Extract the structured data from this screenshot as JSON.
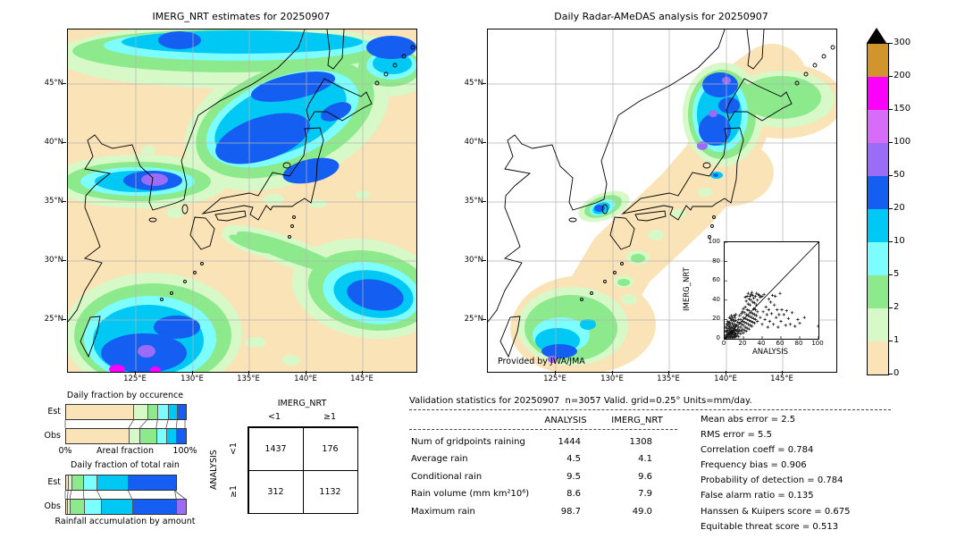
{
  "palette": {
    "levels": [
      "#fae3b7",
      "#d7f9c7",
      "#8cea8c",
      "#7dfdfd",
      "#00c8f5",
      "#155ef2",
      "#9b6cf8",
      "#d76cf8",
      "#fb00fb",
      "#d2952e"
    ],
    "overflow": "#000000",
    "grid": "#b3b3b3",
    "coast": "#000000",
    "right_map_background": "#ffffff"
  },
  "colorbar": {
    "tick_labels": [
      "0",
      "1",
      "2",
      "5",
      "10",
      "20",
      "50",
      "100",
      "150",
      "200",
      "300"
    ],
    "units": "mm/day"
  },
  "chart_data": [
    {
      "type": "heatmap",
      "subtype": "filled-contour-precipitation-map",
      "title": "IMERG_NRT estimates for 20250907",
      "x_ticks": [
        "125°E",
        "130°E",
        "135°E",
        "140°E",
        "145°E"
      ],
      "y_ticks": [
        "45°N",
        "40°N",
        "35°N",
        "30°N",
        "25°N"
      ],
      "legend_levels_mm_day": [
        0,
        1,
        2,
        5,
        10,
        20,
        50,
        100,
        150,
        200,
        300
      ],
      "notes": "Daily precipitation over Japan region; heavy rain band (20-50+) over Sea of Japan, northern Honshu and Hokkaido, cell with 50-100 core south of Korea, large 20-50 areas southwest of Okinawa with 150-200 spots, band near 27N east of 140E, cyan band along northern edge"
    },
    {
      "type": "heatmap",
      "subtype": "filled-contour-precipitation-map",
      "title": "Daily Radar-AMeDAS analysis for 20250907",
      "x_ticks": [
        "125°E",
        "130°E",
        "135°E",
        "140°E",
        "145°E"
      ],
      "y_ticks": [
        "45°N",
        "40°N",
        "35°N",
        "30°N",
        "25°N"
      ],
      "legend_levels_mm_day": [
        0,
        1,
        2,
        5,
        10,
        20,
        50,
        100,
        150,
        200,
        300
      ],
      "annotation": "Provided by JWA/JMA",
      "notes": "Radar coverage band along Japanese archipelago on white background; heavy rain (20-50 with 50-100 spots) along Sea-of-Japan side of Tohoku and western Hokkaido, cells near Korea Strait, circular radar areas around Okinawa with rain, green over eastern Hokkaido"
    },
    {
      "type": "bar",
      "subtype": "stacked-horizontal-fraction",
      "title": "Daily fraction by occurence",
      "xlabel": "Areal fraction",
      "x_start_label": "0%",
      "x_end_label": "100%",
      "categories": [
        "Est",
        "Obs"
      ],
      "levels": [
        0,
        1,
        2,
        3,
        4,
        5
      ],
      "series": [
        {
          "name": "0-1 mm/day",
          "values": [
            57.0,
            52.8
          ]
        },
        {
          "name": "1-2 mm/day",
          "values": [
            11.3,
            9.3
          ]
        },
        {
          "name": "2-5 mm/day",
          "values": [
            8.8,
            13.8
          ]
        },
        {
          "name": "5-10 mm/day",
          "values": [
            8.8,
            8.3
          ]
        },
        {
          "name": "10-20 mm/day",
          "values": [
            7.5,
            8.5
          ]
        },
        {
          "name": "20-50 mm/day",
          "values": [
            6.6,
            7.3
          ]
        }
      ]
    },
    {
      "type": "bar",
      "subtype": "stacked-horizontal-fraction",
      "title": "Daily fraction of total rain",
      "caption": "Rainfall accumulation by amount",
      "categories": [
        "Est",
        "Obs"
      ],
      "levels": [
        0,
        1,
        2,
        3,
        4,
        5,
        6
      ],
      "series": [
        {
          "name": "0-1 mm/day",
          "values": [
            2.3,
            1.8
          ]
        },
        {
          "name": "1-2 mm/day",
          "values": [
            2.7,
            2.0
          ]
        },
        {
          "name": "2-5 mm/day",
          "values": [
            10.3,
            11.7
          ]
        },
        {
          "name": "5-10 mm/day",
          "values": [
            11.2,
            14.5
          ]
        },
        {
          "name": "10-20 mm/day",
          "values": [
            26.0,
            25.7
          ]
        },
        {
          "name": "20-50 mm/day",
          "values": [
            39.0,
            37.0
          ]
        },
        {
          "name": "50-100 mm/day",
          "values": [
            0,
            7.3
          ]
        }
      ]
    },
    {
      "type": "table",
      "subtype": "contingency",
      "col_title": "IMERG_NRT",
      "row_title": "ANALYSIS",
      "col_labels": [
        "<1",
        "≥1"
      ],
      "row_labels": [
        "<1",
        "≥1"
      ],
      "values": [
        [
          "1437",
          "176"
        ],
        [
          "312",
          "1132"
        ]
      ]
    },
    {
      "type": "table",
      "subtype": "validation-statistics",
      "title": "Validation statistics for 20250907  n=3057 Valid. grid=0.25° Units=mm/day.",
      "col_headers": [
        "ANALYSIS",
        "IMERG_NRT"
      ],
      "rows": [
        {
          "label": "Num of gridpoints raining",
          "analysis": "1444",
          "imerg": "1308"
        },
        {
          "label": "Average rain",
          "analysis": "4.5",
          "imerg": "4.1"
        },
        {
          "label": "Conditional rain",
          "analysis": "9.5",
          "imerg": "9.6"
        },
        {
          "label": "Rain volume (mm km²10⁶)",
          "analysis": "8.6",
          "imerg": "7.9"
        },
        {
          "label": "Maximum rain",
          "analysis": "98.7",
          "imerg": "49.0"
        }
      ],
      "metrics": [
        {
          "label": "Mean abs error",
          "value": "2.5"
        },
        {
          "label": "RMS error",
          "value": "5.5"
        },
        {
          "label": "Correlation coeff",
          "value": "0.784"
        },
        {
          "label": "Frequency bias",
          "value": "0.906"
        },
        {
          "label": "Probability of detection",
          "value": "0.784"
        },
        {
          "label": "False alarm ratio",
          "value": "0.135"
        },
        {
          "label": "Hanssen & Kuipers score",
          "value": "0.675"
        },
        {
          "label": "Equitable threat score",
          "value": "0.513"
        }
      ]
    },
    {
      "type": "scatter",
      "subtype": "inset-validation-scatter",
      "xlabel": "ANALYSIS",
      "ylabel": "IMERG_NRT",
      "xlim": [
        0,
        100
      ],
      "ylim": [
        0,
        100
      ],
      "ticks": [
        "0",
        "20",
        "40",
        "60",
        "80",
        "100"
      ],
      "marker": "+",
      "one_to_one_line": true,
      "points": [
        [
          1,
          1
        ],
        [
          1,
          3
        ],
        [
          2,
          1
        ],
        [
          2,
          4
        ],
        [
          2,
          7
        ],
        [
          3,
          2
        ],
        [
          3,
          5
        ],
        [
          3,
          9
        ],
        [
          4,
          1
        ],
        [
          4,
          4
        ],
        [
          4,
          7
        ],
        [
          4,
          11
        ],
        [
          5,
          2
        ],
        [
          5,
          5
        ],
        [
          5,
          9
        ],
        [
          5,
          13
        ],
        [
          6,
          1
        ],
        [
          6,
          3
        ],
        [
          6,
          6
        ],
        [
          6,
          10
        ],
        [
          6,
          15
        ],
        [
          7,
          2
        ],
        [
          7,
          5
        ],
        [
          7,
          8
        ],
        [
          7,
          12
        ],
        [
          8,
          1
        ],
        [
          8,
          4
        ],
        [
          8,
          7
        ],
        [
          8,
          11
        ],
        [
          8,
          16
        ],
        [
          9,
          2
        ],
        [
          9,
          6
        ],
        [
          9,
          9
        ],
        [
          9,
          14
        ],
        [
          10,
          1
        ],
        [
          10,
          4
        ],
        [
          10,
          8
        ],
        [
          10,
          12
        ],
        [
          10,
          18
        ],
        [
          11,
          3
        ],
        [
          11,
          6
        ],
        [
          11,
          10
        ],
        [
          11,
          15
        ],
        [
          12,
          2
        ],
        [
          12,
          5
        ],
        [
          12,
          9
        ],
        [
          12,
          13
        ],
        [
          12,
          19
        ],
        [
          3,
          14
        ],
        [
          2,
          11
        ],
        [
          1,
          8
        ],
        [
          5,
          17
        ],
        [
          7,
          19
        ],
        [
          4,
          16
        ],
        [
          6,
          21
        ],
        [
          9,
          20
        ],
        [
          11,
          22
        ],
        [
          2,
          15
        ],
        [
          8,
          22
        ],
        [
          10,
          24
        ],
        [
          12,
          25
        ],
        [
          1,
          12
        ],
        [
          3,
          18
        ],
        [
          5,
          22
        ],
        [
          7,
          24
        ],
        [
          13,
          3
        ],
        [
          13,
          8
        ],
        [
          13,
          14
        ],
        [
          14,
          5
        ],
        [
          14,
          10
        ],
        [
          14,
          17
        ],
        [
          15,
          2
        ],
        [
          15,
          7
        ],
        [
          15,
          12
        ],
        [
          15,
          20
        ],
        [
          16,
          9
        ],
        [
          16,
          16
        ],
        [
          16,
          24
        ],
        [
          17,
          5
        ],
        [
          17,
          12
        ],
        [
          17,
          20
        ],
        [
          18,
          8
        ],
        [
          18,
          15
        ],
        [
          18,
          26
        ],
        [
          19,
          10
        ],
        [
          19,
          18
        ],
        [
          19,
          28
        ],
        [
          20,
          6
        ],
        [
          20,
          14
        ],
        [
          20,
          22
        ],
        [
          20,
          31
        ],
        [
          21,
          9
        ],
        [
          21,
          17
        ],
        [
          21,
          27
        ],
        [
          22,
          12
        ],
        [
          22,
          21
        ],
        [
          22,
          33
        ],
        [
          23,
          8
        ],
        [
          23,
          16
        ],
        [
          23,
          25
        ],
        [
          24,
          11
        ],
        [
          24,
          20
        ],
        [
          24,
          30
        ],
        [
          25,
          15
        ],
        [
          25,
          24
        ],
        [
          25,
          36
        ],
        [
          26,
          10
        ],
        [
          26,
          19
        ],
        [
          26,
          29
        ],
        [
          27,
          14
        ],
        [
          27,
          23
        ],
        [
          27,
          35
        ],
        [
          28,
          18
        ],
        [
          28,
          27
        ],
        [
          28,
          40
        ],
        [
          29,
          13
        ],
        [
          29,
          22
        ],
        [
          30,
          17
        ],
        [
          30,
          26
        ],
        [
          30,
          38
        ],
        [
          31,
          21
        ],
        [
          31,
          31
        ],
        [
          32,
          16
        ],
        [
          32,
          25
        ],
        [
          32,
          37
        ],
        [
          33,
          20
        ],
        [
          33,
          30
        ],
        [
          34,
          24
        ],
        [
          34,
          35
        ],
        [
          35,
          18
        ],
        [
          35,
          28
        ],
        [
          22,
          43
        ],
        [
          24,
          44
        ],
        [
          25,
          47
        ],
        [
          27,
          44
        ],
        [
          28,
          46
        ],
        [
          30,
          45
        ],
        [
          31,
          42
        ],
        [
          33,
          44
        ],
        [
          35,
          40
        ],
        [
          36,
          46
        ],
        [
          38,
          43
        ],
        [
          26,
          41
        ],
        [
          29,
          48
        ],
        [
          23,
          39
        ],
        [
          34,
          47
        ],
        [
          37,
          45
        ],
        [
          40,
          44
        ],
        [
          42,
          46
        ],
        [
          38,
          22
        ],
        [
          40,
          15
        ],
        [
          41,
          28
        ],
        [
          43,
          20
        ],
        [
          44,
          33
        ],
        [
          45,
          25
        ],
        [
          46,
          12
        ],
        [
          47,
          30
        ],
        [
          48,
          18
        ],
        [
          50,
          26
        ],
        [
          51,
          45
        ],
        [
          52,
          15
        ],
        [
          53,
          35
        ],
        [
          55,
          22
        ],
        [
          56,
          30
        ],
        [
          57,
          12
        ],
        [
          58,
          25
        ],
        [
          60,
          18
        ],
        [
          61,
          30
        ],
        [
          63,
          25
        ],
        [
          65,
          14
        ],
        [
          66,
          29
        ],
        [
          68,
          21
        ],
        [
          70,
          15
        ],
        [
          72,
          27
        ],
        [
          75,
          13
        ],
        [
          78,
          20
        ],
        [
          80,
          16
        ],
        [
          85,
          22
        ],
        [
          100,
          13
        ],
        [
          47,
          41
        ],
        [
          49,
          38
        ],
        [
          54,
          44
        ],
        [
          59,
          47
        ]
      ]
    }
  ]
}
